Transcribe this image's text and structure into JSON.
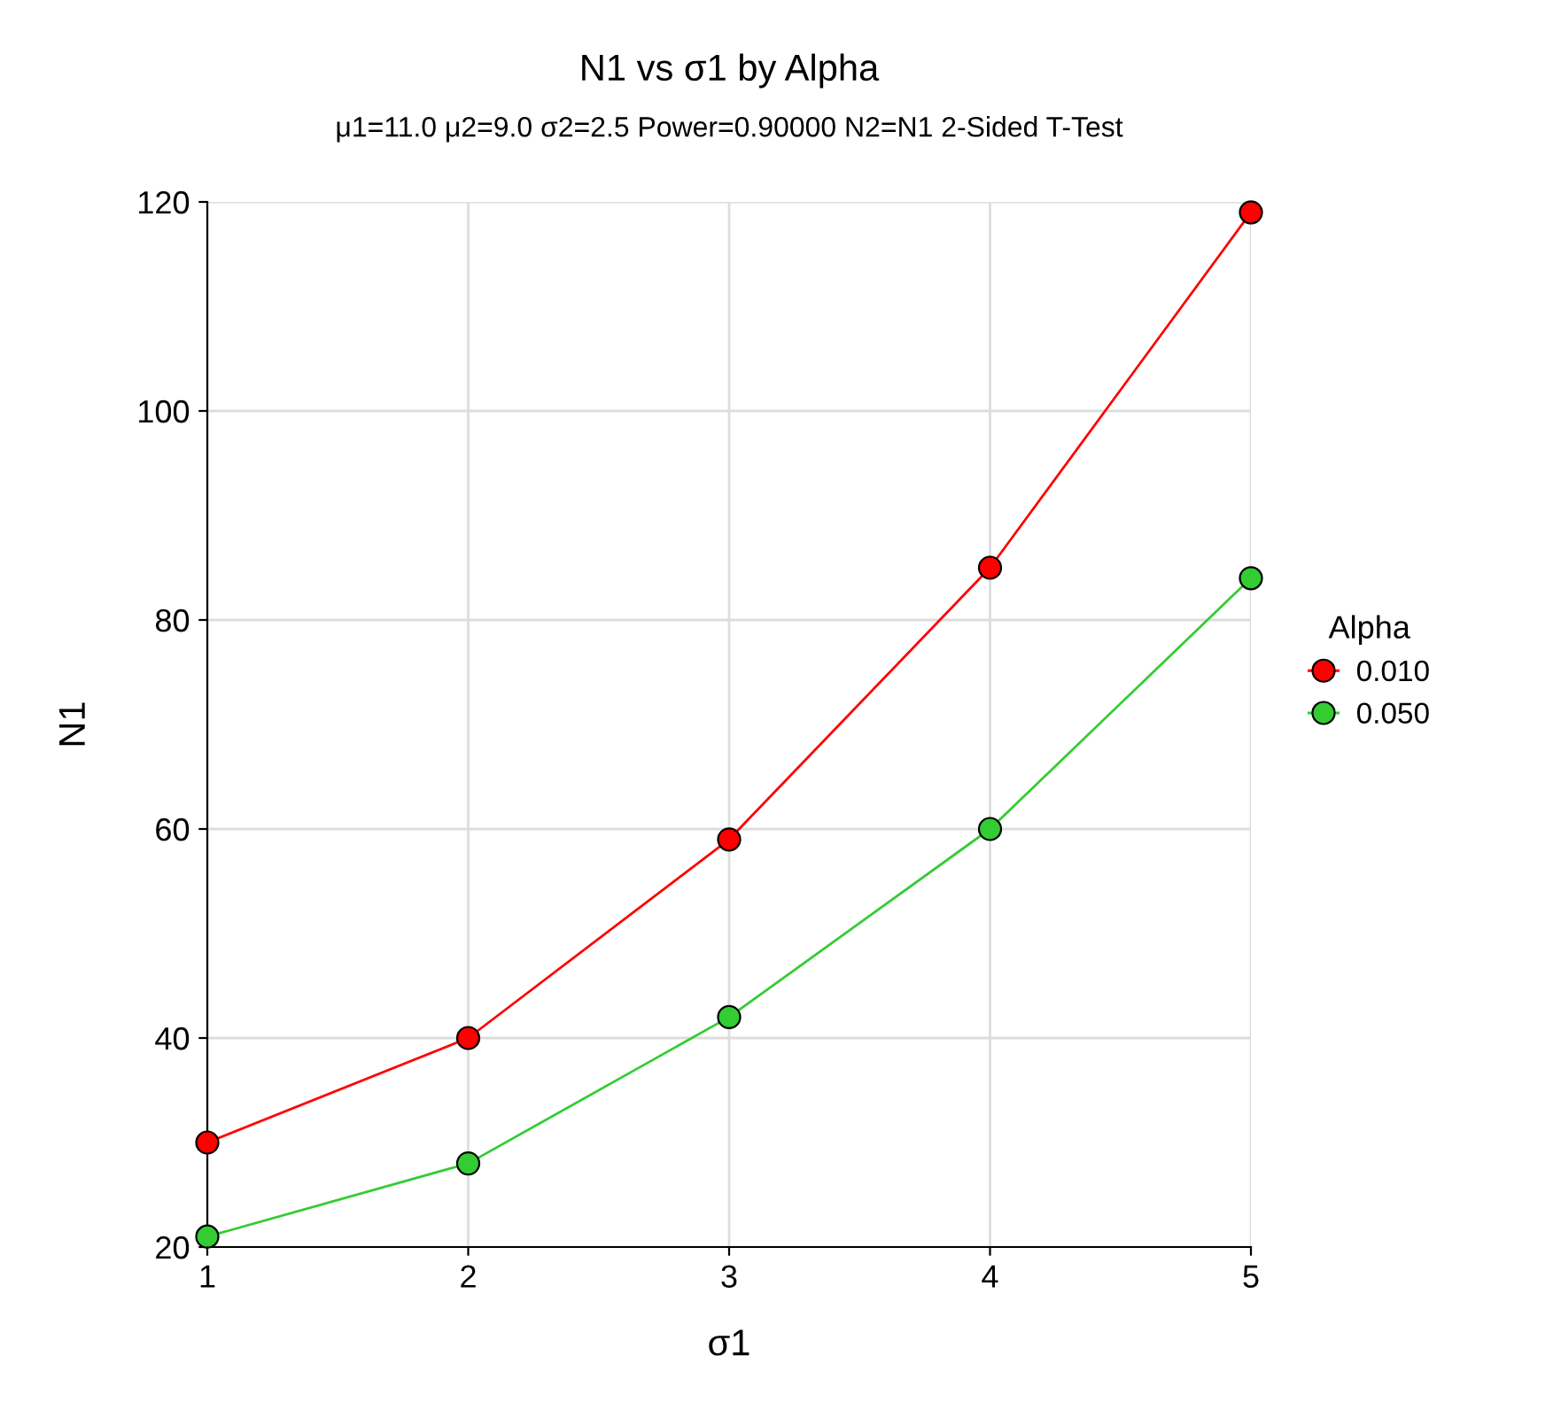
{
  "chart_data": {
    "type": "line",
    "title": "N1 vs σ1 by Alpha",
    "subtitle": "μ1=11.0 μ2=9.0 σ2=2.5 Power=0.90000 N2=N1 2-Sided T-Test",
    "xlabel": "σ1",
    "ylabel": "N1",
    "legend_title": "Alpha",
    "x": [
      1,
      2,
      3,
      4,
      5
    ],
    "series": [
      {
        "name": "0.010",
        "color": "#ff0000",
        "values": [
          30,
          40,
          59,
          85,
          119
        ]
      },
      {
        "name": "0.050",
        "color": "#33cc33",
        "values": [
          21,
          28,
          42,
          60,
          84
        ]
      }
    ],
    "xlim": [
      1,
      5
    ],
    "xticks": [
      1,
      2,
      3,
      4,
      5
    ],
    "ylim": [
      20,
      120
    ],
    "yticks": [
      20,
      40,
      60,
      80,
      100,
      120
    ],
    "grid": true,
    "legend": "right",
    "marker": "circle",
    "line_style": "solid"
  }
}
